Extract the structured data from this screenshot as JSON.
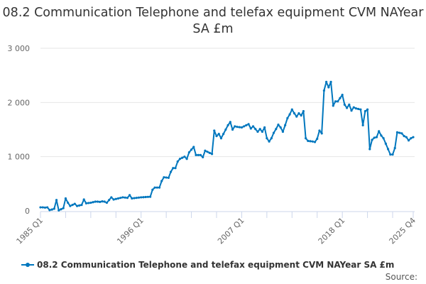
{
  "chart_data": {
    "type": "line",
    "title": "08.2 Communication Telephone and telefax equipment CVM NAYear SA £m",
    "xlabel": "",
    "ylabel": "",
    "x_start": "1985 Q1",
    "x_end": "2025 Q4",
    "frequency": "quarterly",
    "x_tick_labels": [
      "1985 Q1",
      "1996 Q1",
      "2007 Q1",
      "2018 Q1",
      "2025 Q4"
    ],
    "y_tick_labels": [
      "0",
      "1 000",
      "2 000",
      "3 000"
    ],
    "ylim": [
      0,
      3000
    ],
    "grid": "horizontal",
    "legend_position": "bottom",
    "series": [
      {
        "name": "08.2 Communication Telephone and telefax equipment CVM NAYear SA £m",
        "color": "#0077be",
        "values": [
          65,
          65,
          60,
          65,
          15,
          25,
          40,
          200,
          10,
          30,
          50,
          230,
          150,
          90,
          110,
          130,
          90,
          100,
          110,
          210,
          140,
          145,
          150,
          160,
          170,
          170,
          165,
          175,
          170,
          150,
          200,
          250,
          210,
          220,
          230,
          240,
          250,
          245,
          240,
          290,
          230,
          235,
          240,
          245,
          250,
          252,
          255,
          258,
          260,
          390,
          430,
          430,
          430,
          550,
          620,
          615,
          610,
          720,
          790,
          790,
          910,
          960,
          980,
          1000,
          960,
          1080,
          1130,
          1180,
          1030,
          1030,
          1030,
          990,
          1110,
          1090,
          1070,
          1050,
          1480,
          1380,
          1420,
          1340,
          1420,
          1500,
          1580,
          1640,
          1500,
          1560,
          1550,
          1545,
          1540,
          1560,
          1580,
          1600,
          1520,
          1560,
          1510,
          1460,
          1510,
          1460,
          1540,
          1340,
          1280,
          1340,
          1440,
          1510,
          1590,
          1540,
          1460,
          1580,
          1710,
          1780,
          1870,
          1800,
          1740,
          1800,
          1760,
          1840,
          1340,
          1290,
          1285,
          1280,
          1270,
          1330,
          1480,
          1430,
          2220,
          2380,
          2280,
          2380,
          1940,
          2020,
          2020,
          2080,
          2140,
          1960,
          1900,
          1960,
          1850,
          1910,
          1890,
          1880,
          1870,
          1580,
          1840,
          1870,
          1140,
          1310,
          1350,
          1360,
          1470,
          1390,
          1340,
          1240,
          1140,
          1040,
          1040,
          1160,
          1450,
          1440,
          1430,
          1380,
          1360,
          1300,
          1340,
          1360
        ]
      }
    ]
  },
  "source_label": "Source:"
}
